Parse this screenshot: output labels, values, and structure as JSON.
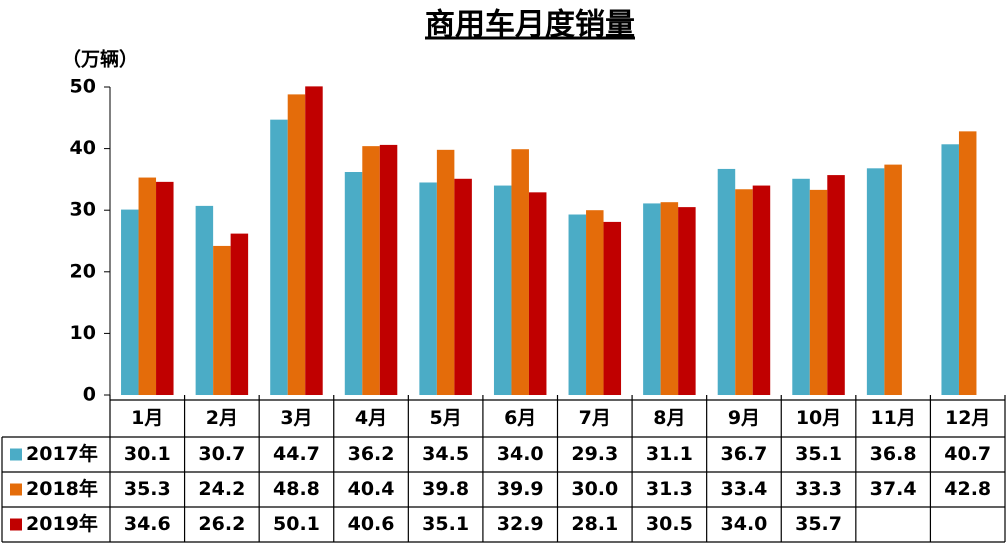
{
  "chart_data": {
    "type": "bar",
    "title": "商用车月度销量",
    "y_label": "（万辆）",
    "categories": [
      "1月",
      "2月",
      "3月",
      "4月",
      "5月",
      "6月",
      "7月",
      "8月",
      "9月",
      "10月",
      "11月",
      "12月"
    ],
    "series": [
      {
        "name": "2017年",
        "color": "#4bacc6",
        "values": [
          30.1,
          30.7,
          44.7,
          36.2,
          34.5,
          34.0,
          29.3,
          31.1,
          36.7,
          35.1,
          36.8,
          40.7
        ],
        "value_labels": [
          "30.1",
          "30.7",
          "44.7",
          "36.2",
          "34.5",
          "34.0",
          "29.3",
          "31.1",
          "36.7",
          "35.1",
          "36.8",
          "40.7"
        ]
      },
      {
        "name": "2018年",
        "color": "#e46c0a",
        "values": [
          35.3,
          24.2,
          48.8,
          40.4,
          39.8,
          39.9,
          30.0,
          31.3,
          33.4,
          33.3,
          37.4,
          42.8
        ],
        "value_labels": [
          "35.3",
          "24.2",
          "48.8",
          "40.4",
          "39.8",
          "39.9",
          "30.0",
          "31.3",
          "33.4",
          "33.3",
          "37.4",
          "42.8"
        ]
      },
      {
        "name": "2019年",
        "color": "#c00000",
        "values": [
          34.6,
          26.2,
          50.1,
          40.6,
          35.1,
          32.9,
          28.1,
          30.5,
          34.0,
          35.7,
          null,
          null
        ],
        "value_labels": [
          "34.6",
          "26.2",
          "50.1",
          "40.6",
          "35.1",
          "32.9",
          "28.1",
          "30.5",
          "34.0",
          "35.7",
          null,
          null
        ]
      }
    ],
    "ylim": [
      0,
      50
    ],
    "yticks": [
      0,
      10,
      20,
      30,
      40,
      50
    ],
    "grid": false
  }
}
